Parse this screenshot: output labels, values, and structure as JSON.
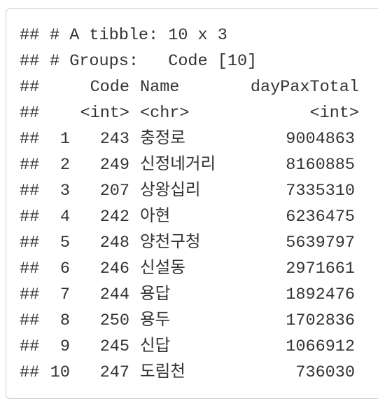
{
  "prefix": "##",
  "meta": [
    "# A tibble: 10 x 3",
    "# Groups:   Code [10]"
  ],
  "table": {
    "columns": [
      "Code",
      "Name",
      "dayPaxTotal"
    ],
    "types": [
      "<int>",
      "<chr>",
      "<int>"
    ],
    "rows": [
      [
        "1",
        "243",
        "충정로",
        "9004863"
      ],
      [
        "2",
        "249",
        "신정네거리",
        "8160885"
      ],
      [
        "3",
        "207",
        "상왕십리",
        "7335310"
      ],
      [
        "4",
        "242",
        "아현",
        "6236475"
      ],
      [
        "5",
        "248",
        "양천구청",
        "5639797"
      ],
      [
        "6",
        "246",
        "신설동",
        "2971661"
      ],
      [
        "7",
        "244",
        "용답",
        "1892476"
      ],
      [
        "8",
        "250",
        "용두",
        "1702836"
      ],
      [
        "9",
        "245",
        "신답",
        "1066912"
      ],
      [
        "10",
        "247",
        "도림천",
        "736030"
      ]
    ]
  }
}
